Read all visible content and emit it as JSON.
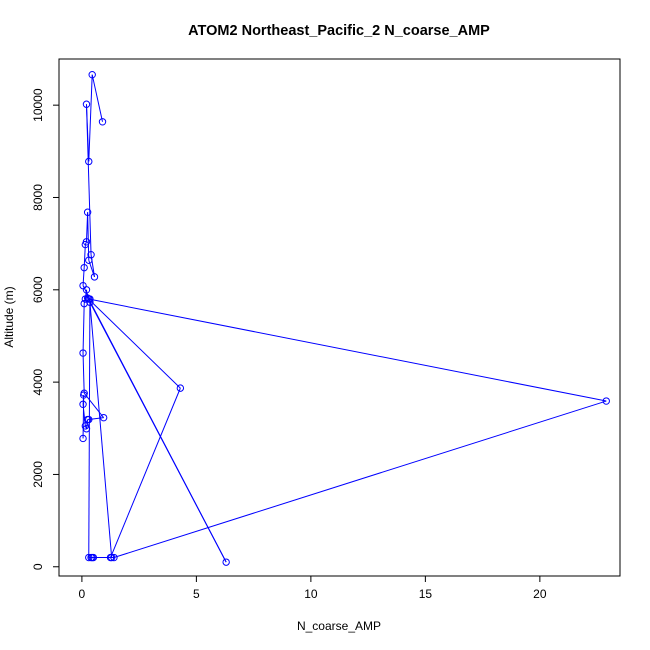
{
  "chart_data": {
    "type": "line",
    "title": "ATOM2 Northeast_Pacific_2 N_coarse_AMP",
    "xlabel": "N_coarse_AMP",
    "ylabel": "Altitude (m)",
    "xlim": [
      -1,
      23.5
    ],
    "ylim": [
      -200,
      11000
    ],
    "xticks": [
      0,
      5,
      10,
      15,
      20
    ],
    "yticks": [
      0,
      2000,
      4000,
      6000,
      8000,
      10000
    ],
    "series_color": "#0000ff",
    "series": [
      {
        "marker": "open-circle",
        "points": [
          [
            0.05,
            2780
          ],
          [
            0.08,
            3720
          ],
          [
            0.05,
            3520
          ],
          [
            0.15,
            3050
          ],
          [
            0.2,
            2990
          ],
          [
            0.25,
            3190
          ],
          [
            0.3,
            3190
          ],
          [
            0.95,
            3230
          ],
          [
            0.1,
            3760
          ],
          [
            0.05,
            4630
          ],
          [
            0.1,
            5700
          ],
          [
            0.15,
            5800
          ],
          [
            0.2,
            6000
          ],
          [
            0.25,
            5820
          ],
          [
            4.3,
            3870
          ],
          [
            1.25,
            200
          ],
          [
            1.3,
            200
          ],
          [
            0.35,
            5730
          ],
          [
            6.3,
            100
          ],
          [
            0.3,
            5800
          ],
          [
            22.9,
            3590
          ],
          [
            1.4,
            200
          ],
          [
            0.4,
            200
          ],
          [
            0.5,
            200
          ],
          [
            0.45,
            200
          ],
          [
            0.3,
            200
          ],
          [
            0.35,
            5800
          ],
          [
            0.05,
            6090
          ],
          [
            0.1,
            6480
          ],
          [
            0.15,
            6980
          ],
          [
            0.2,
            7040
          ],
          [
            0.25,
            7680
          ],
          [
            0.3,
            6640
          ],
          [
            0.55,
            6280
          ],
          [
            0.4,
            6760
          ],
          [
            0.2,
            10020
          ],
          [
            0.3,
            8780
          ],
          [
            0.45,
            10660
          ],
          [
            0.9,
            9640
          ]
        ]
      }
    ]
  }
}
